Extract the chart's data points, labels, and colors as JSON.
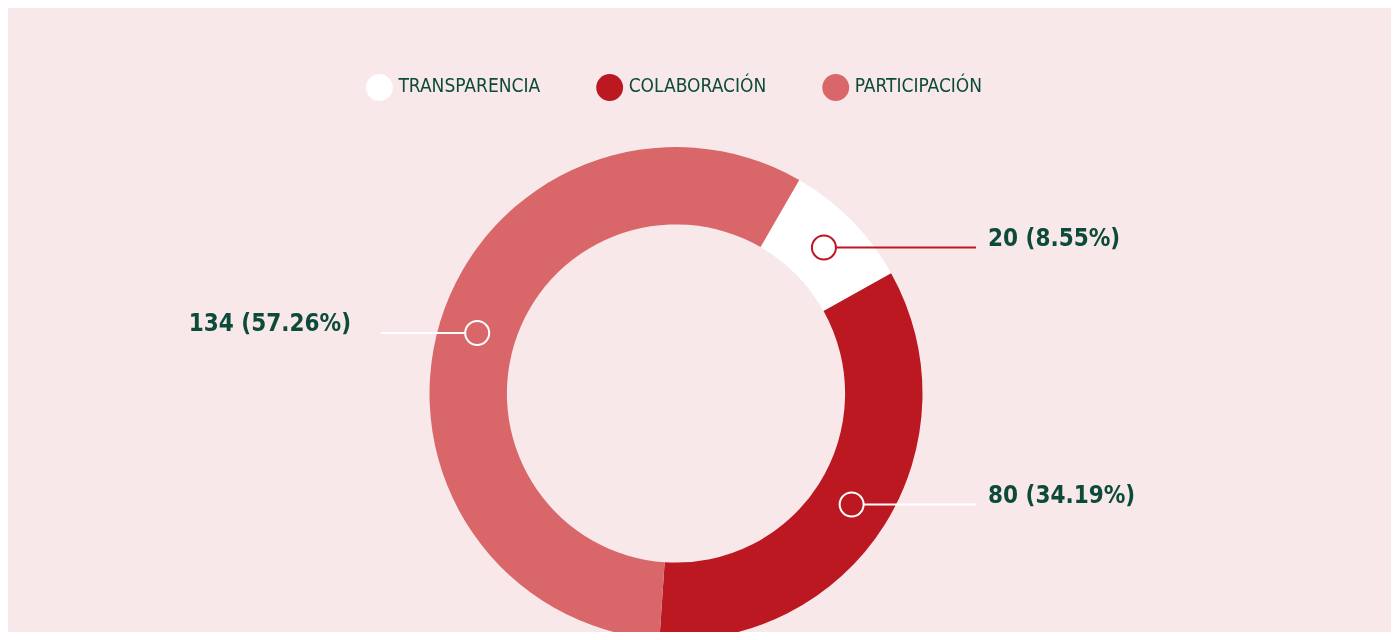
{
  "chart_data": {
    "type": "donut",
    "categories": [
      "TRANSPARENCIA",
      "COLABORACIÓN",
      "PARTICIPACIÓN"
    ],
    "values": [
      20,
      80,
      134
    ],
    "colors": [
      "#ffffff",
      "#bb1822",
      "#d9676a"
    ],
    "value_labels": [
      "20 (8.55%)",
      "80 (34.19%)",
      "134 (57.26%)"
    ],
    "legend": "top"
  }
}
